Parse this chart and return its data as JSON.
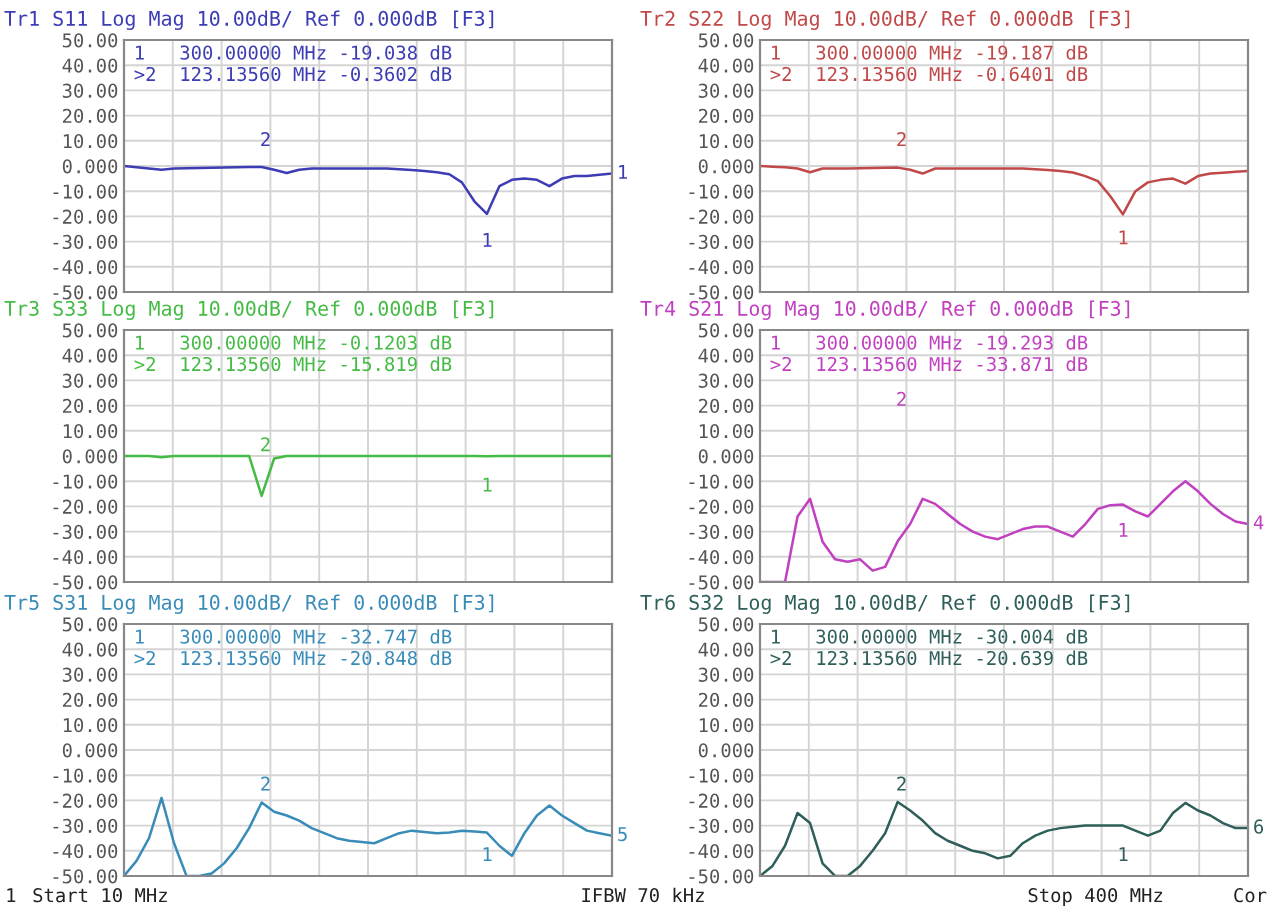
{
  "chart_data": [
    {
      "type": "line",
      "title": "Tr1 S11 Log Mag 10.00dB/ Ref 0.000dB [F3]",
      "categories": [
        null,
        null,
        null,
        null,
        null,
        null,
        null,
        null,
        null,
        null,
        null,
        null,
        null,
        null,
        null,
        null,
        null,
        null,
        null,
        null,
        null,
        null,
        null,
        null,
        null,
        null,
        null,
        null,
        null,
        null,
        null,
        null,
        null,
        null,
        null,
        null,
        null,
        null,
        null,
        null
      ],
      "ylim": [
        -50,
        50
      ],
      "yticks": [
        {
          "value": 50,
          "label": "50.00"
        },
        {
          "value": 40,
          "label": "40.00"
        },
        {
          "value": 30,
          "label": "30.00"
        },
        {
          "value": 20,
          "label": "20.00"
        },
        {
          "value": 10,
          "label": "10.00"
        },
        {
          "value": 0,
          "label": "0.000"
        },
        {
          "value": -10,
          "label": "-10.00"
        },
        {
          "value": -20,
          "label": "-20.00"
        },
        {
          "value": -30,
          "label": "-30.00"
        },
        {
          "value": -40,
          "label": "-40.00"
        },
        {
          "value": -50,
          "label": "-50.00"
        }
      ],
      "tick_labels": "y",
      "grid": true,
      "series": [
        {
          "color": "#3c3cb4",
          "values": [
            0,
            -0.5,
            -1,
            -1.5,
            -1,
            -0.9,
            -0.8,
            -0.7,
            -0.6,
            -0.5,
            -0.4,
            -0.3602,
            -1.5,
            -2.8,
            -1.5,
            -1,
            -1,
            -1,
            -1,
            -1,
            -1,
            -1,
            -1.3,
            -1.6,
            -2,
            -2.5,
            -3.3,
            -6.5,
            -14,
            -19.038,
            -8,
            -5.5,
            -5,
            -5.5,
            -8,
            -5,
            -4,
            -4,
            -3.5,
            -3
          ]
        }
      ],
      "annotations": [
        "1   300.00000 MHz -19.038 dB",
        ">2  123.13560 MHz -0.3602 dB",
        "1",
        "2",
        "1"
      ]
    },
    {
      "type": "line",
      "title": "Tr2 S22 Log Mag 10.00dB/ Ref 0.000dB [F3]",
      "categories": [
        null,
        null,
        null,
        null,
        null,
        null,
        null,
        null,
        null,
        null,
        null,
        null,
        null,
        null,
        null,
        null,
        null,
        null,
        null,
        null,
        null,
        null,
        null,
        null,
        null,
        null,
        null,
        null,
        null,
        null,
        null,
        null,
        null,
        null,
        null,
        null,
        null,
        null,
        null,
        null
      ],
      "ylim": [
        -50,
        50
      ],
      "yticks": [
        {
          "value": 50,
          "label": "50.00"
        },
        {
          "value": 40,
          "label": "40.00"
        },
        {
          "value": 30,
          "label": "30.00"
        },
        {
          "value": 20,
          "label": "20.00"
        },
        {
          "value": 10,
          "label": "10.00"
        },
        {
          "value": 0,
          "label": "0.000"
        },
        {
          "value": -10,
          "label": "-10.00"
        },
        {
          "value": -20,
          "label": "-20.00"
        },
        {
          "value": -30,
          "label": "-30.00"
        },
        {
          "value": -40,
          "label": "-40.00"
        },
        {
          "value": -50,
          "label": "-50.00"
        }
      ],
      "tick_labels": "y",
      "grid": true,
      "series": [
        {
          "color": "#c04848",
          "values": [
            0,
            -0.3,
            -0.5,
            -1,
            -2.5,
            -1,
            -1,
            -1,
            -0.9,
            -0.8,
            -0.7,
            -0.6401,
            -1.5,
            -3,
            -1,
            -1,
            -1,
            -1,
            -1,
            -1,
            -1,
            -1,
            -1.3,
            -1.6,
            -2,
            -2.6,
            -4,
            -6,
            -12,
            -19.187,
            -10,
            -6.5,
            -5.5,
            -5,
            -7,
            -4,
            -3,
            -2.7,
            -2.3,
            -2
          ]
        }
      ],
      "annotations": [
        "1   300.00000 MHz -19.187 dB",
        ">2  123.13560 MHz -0.6401 dB",
        "1",
        "2"
      ]
    },
    {
      "type": "line",
      "title": "Tr3 S33 Log Mag 10.00dB/ Ref 0.000dB [F3]",
      "categories": [
        null,
        null,
        null,
        null,
        null,
        null,
        null,
        null,
        null,
        null,
        null,
        null,
        null,
        null,
        null,
        null,
        null,
        null,
        null,
        null,
        null,
        null,
        null,
        null,
        null,
        null,
        null,
        null,
        null,
        null,
        null,
        null,
        null,
        null,
        null,
        null,
        null,
        null,
        null,
        null
      ],
      "ylim": [
        -50,
        50
      ],
      "yticks": [
        {
          "value": 50,
          "label": "50.00"
        },
        {
          "value": 40,
          "label": "40.00"
        },
        {
          "value": 30,
          "label": "30.00"
        },
        {
          "value": 20,
          "label": "20.00"
        },
        {
          "value": 10,
          "label": "10.00"
        },
        {
          "value": 0,
          "label": "0.000"
        },
        {
          "value": -10,
          "label": "-10.00"
        },
        {
          "value": -20,
          "label": "-20.00"
        },
        {
          "value": -30,
          "label": "-30.00"
        },
        {
          "value": -40,
          "label": "-40.00"
        },
        {
          "value": -50,
          "label": "-50.00"
        }
      ],
      "tick_labels": "y",
      "grid": true,
      "series": [
        {
          "color": "#44bb44",
          "values": [
            0,
            0,
            0,
            -0.5,
            0,
            0,
            0,
            0,
            0,
            0,
            0,
            -15.819,
            -1,
            0,
            0,
            0,
            0,
            0,
            0,
            0,
            0,
            0,
            0,
            0,
            0,
            0,
            0,
            0,
            0,
            -0.1203,
            0,
            0,
            0,
            0,
            0,
            0,
            0,
            0,
            0,
            0
          ]
        }
      ],
      "annotations": [
        "1   300.00000 MHz -0.1203 dB",
        ">2  123.13560 MHz -15.819 dB",
        "1",
        "2"
      ]
    },
    {
      "type": "line",
      "title": "Tr4 S21 Log Mag 10.00dB/ Ref 0.000dB [F3]",
      "categories": [
        null,
        null,
        null,
        null,
        null,
        null,
        null,
        null,
        null,
        null,
        null,
        null,
        null,
        null,
        null,
        null,
        null,
        null,
        null,
        null,
        null,
        null,
        null,
        null,
        null,
        null,
        null,
        null,
        null,
        null,
        null,
        null,
        null,
        null,
        null,
        null,
        null,
        null,
        null,
        null
      ],
      "ylim": [
        -50,
        50
      ],
      "yticks": [
        {
          "value": 50,
          "label": "50.00"
        },
        {
          "value": 40,
          "label": "40.00"
        },
        {
          "value": 30,
          "label": "30.00"
        },
        {
          "value": 20,
          "label": "20.00"
        },
        {
          "value": 10,
          "label": "10.00"
        },
        {
          "value": 0,
          "label": "0.000"
        },
        {
          "value": -10,
          "label": "-10.00"
        },
        {
          "value": -20,
          "label": "-20.00"
        },
        {
          "value": -30,
          "label": "-30.00"
        },
        {
          "value": -40,
          "label": "-40.00"
        },
        {
          "value": -50,
          "label": "-50.00"
        }
      ],
      "tick_labels": "y",
      "grid": true,
      "series": [
        {
          "color": "#c040c0",
          "values": [
            -50,
            -50,
            -50,
            -24,
            -17,
            -34,
            -41,
            -42,
            -41,
            -45.5,
            -44,
            -33.871,
            -27,
            -17,
            -19,
            -23,
            -27,
            -30,
            -32,
            -33,
            -31,
            -29,
            -28,
            -28,
            -30,
            -32,
            -27,
            -21,
            -19.5,
            -19.293,
            -22,
            -24,
            -19,
            -14,
            -10,
            -14,
            -19,
            -23,
            -26,
            -27
          ]
        }
      ],
      "annotations": [
        "1   300.00000 MHz -19.293 dB",
        ">2  123.13560 MHz -33.871 dB",
        "1",
        "2",
        "4"
      ]
    },
    {
      "type": "line",
      "title": "Tr5 S31 Log Mag 10.00dB/ Ref 0.000dB [F3]",
      "categories": [
        null,
        null,
        null,
        null,
        null,
        null,
        null,
        null,
        null,
        null,
        null,
        null,
        null,
        null,
        null,
        null,
        null,
        null,
        null,
        null,
        null,
        null,
        null,
        null,
        null,
        null,
        null,
        null,
        null,
        null,
        null,
        null,
        null,
        null,
        null,
        null,
        null,
        null,
        null,
        null
      ],
      "ylim": [
        -50,
        50
      ],
      "yticks": [
        {
          "value": 50,
          "label": "50.00"
        },
        {
          "value": 40,
          "label": "40.00"
        },
        {
          "value": 30,
          "label": "30.00"
        },
        {
          "value": 20,
          "label": "20.00"
        },
        {
          "value": 10,
          "label": "10.00"
        },
        {
          "value": 0,
          "label": "0.000"
        },
        {
          "value": -10,
          "label": "-10.00"
        },
        {
          "value": -20,
          "label": "-20.00"
        },
        {
          "value": -30,
          "label": "-30.00"
        },
        {
          "value": -40,
          "label": "-40.00"
        },
        {
          "value": -50,
          "label": "-50.00"
        }
      ],
      "tick_labels": "y",
      "grid": true,
      "series": [
        {
          "color": "#3a8cb8",
          "values": [
            -50,
            -44,
            -35,
            -19,
            -37,
            -50,
            -50,
            -49,
            -45,
            -39,
            -31,
            -20.848,
            -24.5,
            -26,
            -28,
            -31,
            -33,
            -35,
            -36,
            -36.5,
            -37,
            -35,
            -33,
            -32,
            -32.5,
            -33,
            -32.7,
            -32,
            -32.3,
            -32.747,
            -38,
            -42,
            -33,
            -26,
            -22,
            -26,
            -29,
            -32,
            -33,
            -34
          ]
        }
      ],
      "annotations": [
        "1   300.00000 MHz -32.747 dB",
        ">2  123.13560 MHz -20.848 dB",
        "1",
        "2",
        "5",
        "1",
        "Start 10 MHz"
      ]
    },
    {
      "type": "line",
      "title": "Tr6 S32 Log Mag 10.00dB/ Ref 0.000dB [F3]",
      "categories": [
        null,
        null,
        null,
        null,
        null,
        null,
        null,
        null,
        null,
        null,
        null,
        null,
        null,
        null,
        null,
        null,
        null,
        null,
        null,
        null,
        null,
        null,
        null,
        null,
        null,
        null,
        null,
        null,
        null,
        null,
        null,
        null,
        null,
        null,
        null,
        null,
        null,
        null,
        null,
        null
      ],
      "ylim": [
        -50,
        50
      ],
      "yticks": [
        {
          "value": 50,
          "label": "50.00"
        },
        {
          "value": 40,
          "label": "40.00"
        },
        {
          "value": 30,
          "label": "30.00"
        },
        {
          "value": 20,
          "label": "20.00"
        },
        {
          "value": 10,
          "label": "10.00"
        },
        {
          "value": 0,
          "label": "0.000"
        },
        {
          "value": -10,
          "label": "-10.00"
        },
        {
          "value": -20,
          "label": "-20.00"
        },
        {
          "value": -30,
          "label": "-30.00"
        },
        {
          "value": -40,
          "label": "-40.00"
        },
        {
          "value": -50,
          "label": "-50.00"
        }
      ],
      "tick_labels": "y",
      "grid": true,
      "series": [
        {
          "color": "#2f5f5a",
          "values": [
            -50,
            -46,
            -38,
            -25,
            -29,
            -45,
            -50,
            -50,
            -46,
            -40,
            -33,
            -20.639,
            -24,
            -28,
            -33,
            -36,
            -38,
            -40,
            -41,
            -43,
            -42,
            -37,
            -34,
            -32,
            -31,
            -30.5,
            -30,
            -30,
            -30,
            -30.004,
            -32,
            -34,
            -32,
            -25,
            -21,
            -24,
            -26,
            -29,
            -31,
            -31
          ]
        }
      ],
      "annotations": [
        "1   300.00000 MHz -30.004 dB",
        ">2  123.13560 MHz -20.639 dB",
        "1",
        "2",
        "6",
        "IFBW 70 kHz",
        "Stop 400 MHz",
        "Cor"
      ]
    }
  ]
}
